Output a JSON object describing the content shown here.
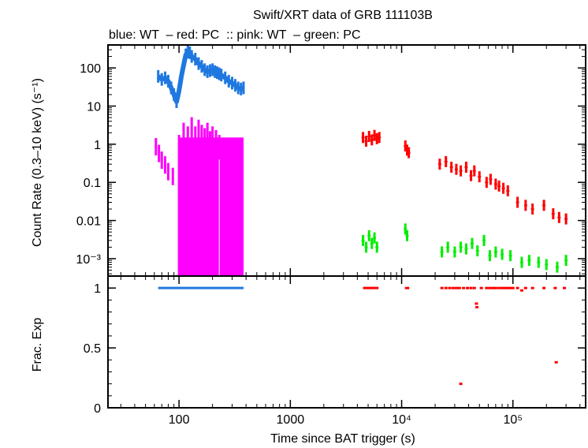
{
  "chart_data": {
    "type": "scatter",
    "title": "Swift/XRT data of GRB 111103B",
    "subtitle": "blue: WT  – red: PC  :: pink: WT  – green: PC",
    "xlabel": "Time since BAT trigger (s)",
    "x_scale": "log",
    "xlim": [
      23,
      450000
    ],
    "x_ticks": [
      "100",
      "1000",
      "10⁴",
      "10⁵"
    ],
    "panels": [
      {
        "name": "count-rate",
        "ylabel": "Count Rate (0.3–10 keV) (s⁻¹)",
        "y_scale": "log",
        "ylim": [
          0.00035,
          400
        ],
        "y_ticks": [
          "10⁻³",
          "0.01",
          "0.1",
          "1",
          "10",
          "100"
        ],
        "series": [
          {
            "name": "WT",
            "color": "#1f78e0",
            "points": [
              [
                65,
                60
              ],
              [
                70,
                50
              ],
              [
                75,
                55
              ],
              [
                80,
                45
              ],
              [
                85,
                30
              ],
              [
                90,
                20
              ],
              [
                95,
                13
              ],
              [
                100,
                25
              ],
              [
                105,
                60
              ],
              [
                110,
                120
              ],
              [
                115,
                220
              ],
              [
                120,
                260
              ],
              [
                125,
                250
              ],
              [
                130,
                200
              ],
              [
                140,
                170
              ],
              [
                150,
                130
              ],
              [
                160,
                110
              ],
              [
                170,
                90
              ],
              [
                180,
                80
              ],
              [
                190,
                85
              ],
              [
                200,
                90
              ],
              [
                210,
                80
              ],
              [
                220,
                75
              ],
              [
                230,
                70
              ],
              [
                240,
                65
              ],
              [
                260,
                55
              ],
              [
                280,
                45
              ],
              [
                300,
                40
              ],
              [
                320,
                35
              ],
              [
                340,
                30
              ],
              [
                360,
                28
              ],
              [
                380,
                30
              ]
            ]
          },
          {
            "name": "PC",
            "color": "#ff0000",
            "points": [
              [
                4500,
                1.5
              ],
              [
                4800,
                1.2
              ],
              [
                5100,
                1.6
              ],
              [
                5400,
                1.3
              ],
              [
                5700,
                1.7
              ],
              [
                6000,
                1.4
              ],
              [
                6300,
                1.5
              ],
              [
                10800,
                0.9
              ],
              [
                11200,
                0.7
              ],
              [
                11600,
                0.6
              ],
              [
                22000,
                0.3
              ],
              [
                25000,
                0.35
              ],
              [
                28000,
                0.25
              ],
              [
                31000,
                0.22
              ],
              [
                34000,
                0.2
              ],
              [
                38000,
                0.25
              ],
              [
                42000,
                0.15
              ],
              [
                45000,
                0.2
              ],
              [
                50000,
                0.14
              ],
              [
                58000,
                0.1
              ],
              [
                63000,
                0.12
              ],
              [
                70000,
                0.09
              ],
              [
                75000,
                0.08
              ],
              [
                82000,
                0.07
              ],
              [
                90000,
                0.06
              ],
              [
                110000,
                0.03
              ],
              [
                130000,
                0.025
              ],
              [
                150000,
                0.02
              ],
              [
                190000,
                0.025
              ],
              [
                230000,
                0.015
              ],
              [
                260000,
                0.012
              ],
              [
                300000,
                0.011
              ]
            ]
          },
          {
            "name": "WT",
            "color": "#ff00ff",
            "points": [
              [
                62,
                0.9
              ],
              [
                66,
                0.6
              ],
              [
                70,
                0.4
              ],
              [
                75,
                0.3
              ],
              [
                80,
                0.2
              ],
              [
                88,
                0.15
              ],
              [
                100,
                1.2
              ],
              [
                110,
                2.5
              ],
              [
                120,
                2.0
              ],
              [
                130,
                3.5
              ],
              [
                140,
                2.0
              ],
              [
                150,
                3.0
              ],
              [
                160,
                2.2
              ],
              [
                170,
                1.8
              ],
              [
                180,
                2.5
              ],
              [
                190,
                1.5
              ],
              [
                200,
                2.0
              ],
              [
                215,
                1.6
              ],
              [
                230,
                1.2
              ],
              [
                250,
                1.0
              ],
              [
                270,
                0.8
              ],
              [
                290,
                0.9
              ],
              [
                310,
                0.7
              ],
              [
                330,
                0.6
              ],
              [
                350,
                0.6
              ],
              [
                370,
                0.5
              ]
            ]
          },
          {
            "name": "PC",
            "color": "#00ee00",
            "points": [
              [
                4500,
                0.003
              ],
              [
                4800,
                0.002
              ],
              [
                5100,
                0.004
              ],
              [
                5400,
                0.0025
              ],
              [
                5700,
                0.0035
              ],
              [
                6000,
                0.002
              ],
              [
                10800,
                0.006
              ],
              [
                11200,
                0.004
              ],
              [
                23000,
                0.0015
              ],
              [
                26000,
                0.002
              ],
              [
                30000,
                0.0015
              ],
              [
                34000,
                0.002
              ],
              [
                38000,
                0.0018
              ],
              [
                43000,
                0.0025
              ],
              [
                48000,
                0.0016
              ],
              [
                55000,
                0.003
              ],
              [
                62000,
                0.0012
              ],
              [
                70000,
                0.0015
              ],
              [
                80000,
                0.0013
              ],
              [
                95000,
                0.0012
              ],
              [
                120000,
                0.0008
              ],
              [
                140000,
                0.0009
              ],
              [
                170000,
                0.0008
              ],
              [
                200000,
                0.0007
              ],
              [
                250000,
                0.0006
              ],
              [
                300000,
                0.0009
              ]
            ]
          }
        ]
      },
      {
        "name": "fractional-exposure",
        "ylabel": "Frac. Exp",
        "y_scale": "linear",
        "ylim": [
          0,
          1.1
        ],
        "y_ticks": [
          "0",
          "0.5",
          "1"
        ],
        "series": [
          {
            "name": "WT",
            "color": "#1f78e0",
            "segments": [
              [
                65,
                380,
                1.0
              ]
            ]
          },
          {
            "name": "PC",
            "color": "#ff0000",
            "segments": [
              [
                4500,
                6200,
                1.0
              ],
              [
                10700,
                11700,
                1.0
              ]
            ],
            "points": [
              [
                23000,
                1
              ],
              [
                25000,
                1
              ],
              [
                27000,
                1
              ],
              [
                29000,
                1
              ],
              [
                31000,
                1
              ],
              [
                33000,
                1
              ],
              [
                36000,
                1
              ],
              [
                39000,
                1
              ],
              [
                42000,
                1
              ],
              [
                45000,
                1
              ],
              [
                47000,
                0.87
              ],
              [
                47500,
                0.84
              ],
              [
                52000,
                1
              ],
              [
                58000,
                1
              ],
              [
                62000,
                1
              ],
              [
                66000,
                1
              ],
              [
                70000,
                1
              ],
              [
                75000,
                1
              ],
              [
                80000,
                1
              ],
              [
                85000,
                1
              ],
              [
                90000,
                1
              ],
              [
                95000,
                1
              ],
              [
                100000,
                1
              ],
              [
                110000,
                1
              ],
              [
                120000,
                0.98
              ],
              [
                130000,
                1
              ],
              [
                150000,
                1
              ],
              [
                190000,
                1
              ],
              [
                240000,
                1
              ],
              [
                290000,
                1
              ],
              [
                34000,
                0.2
              ],
              [
                245000,
                0.38
              ]
            ]
          }
        ]
      }
    ]
  }
}
